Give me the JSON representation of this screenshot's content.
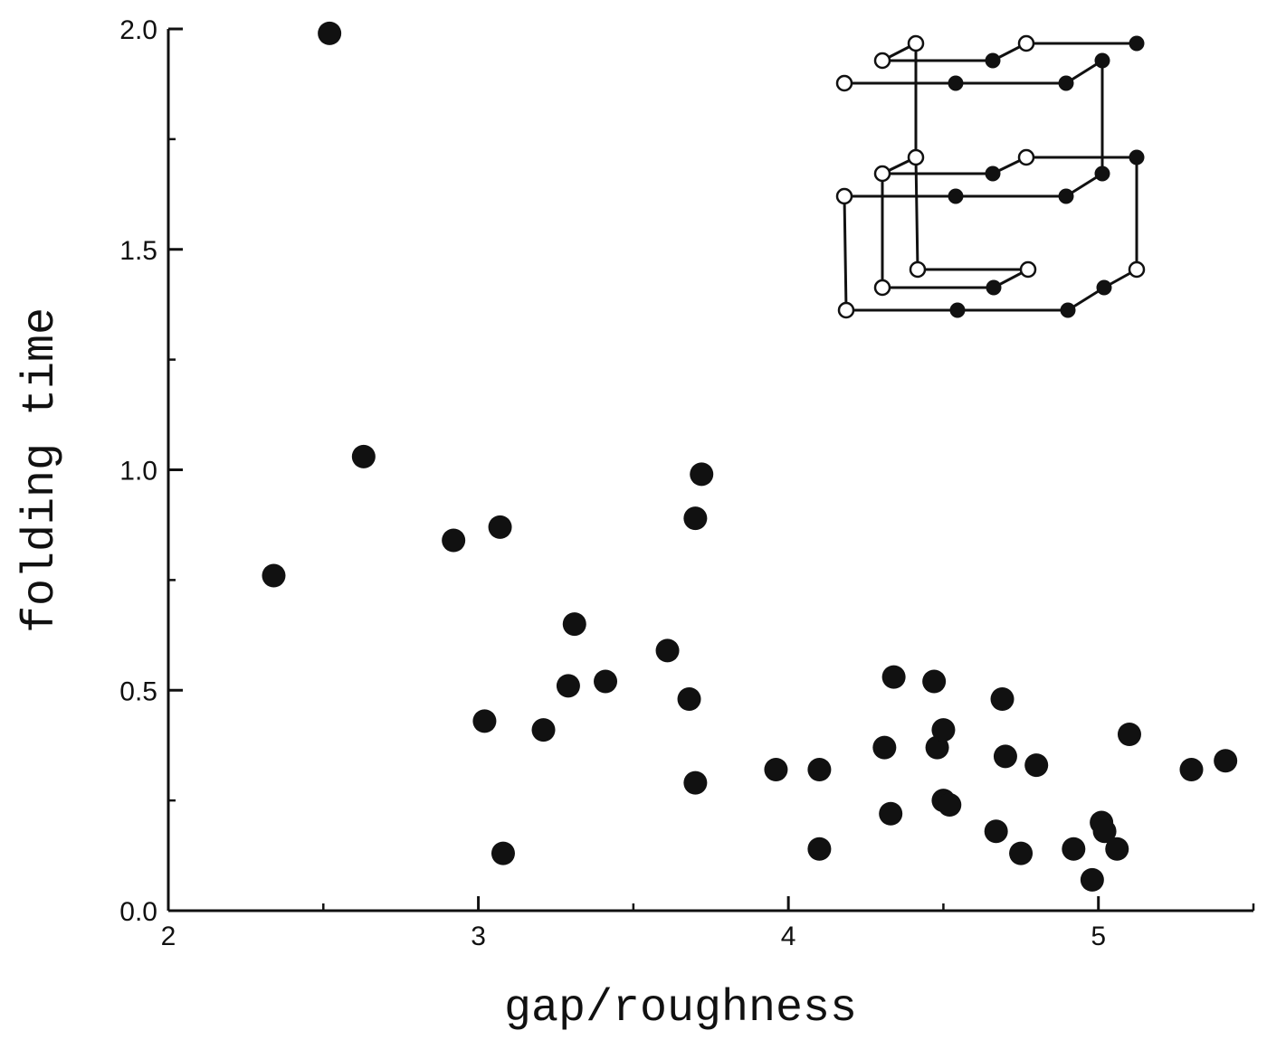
{
  "chart_data": {
    "type": "scatter",
    "title": "",
    "xlabel": "gap/roughness",
    "ylabel": "folding time",
    "xlim": [
      2,
      5.5
    ],
    "ylim": [
      0,
      2.0
    ],
    "xticks": [
      2,
      3,
      4,
      5
    ],
    "xtick_labels": [
      "2",
      "3",
      "4",
      "5"
    ],
    "yticks": [
      0,
      0.5,
      1.0,
      1.5,
      2.0
    ],
    "ytick_labels": [
      "0.0",
      "0.5",
      "1.0",
      "1.5",
      "2.0"
    ],
    "grid": false,
    "legend": "none",
    "marker_color": "#111111",
    "points": [
      {
        "x": 2.34,
        "y": 0.76
      },
      {
        "x": 2.52,
        "y": 1.99
      },
      {
        "x": 2.63,
        "y": 1.03
      },
      {
        "x": 2.92,
        "y": 0.84
      },
      {
        "x": 3.02,
        "y": 0.43
      },
      {
        "x": 3.07,
        "y": 0.87
      },
      {
        "x": 3.08,
        "y": 0.13
      },
      {
        "x": 3.21,
        "y": 0.41
      },
      {
        "x": 3.29,
        "y": 0.51
      },
      {
        "x": 3.31,
        "y": 0.65
      },
      {
        "x": 3.41,
        "y": 0.52
      },
      {
        "x": 3.61,
        "y": 0.59
      },
      {
        "x": 3.68,
        "y": 0.48
      },
      {
        "x": 3.7,
        "y": 0.89
      },
      {
        "x": 3.7,
        "y": 0.29
      },
      {
        "x": 3.72,
        "y": 0.99
      },
      {
        "x": 3.96,
        "y": 0.32
      },
      {
        "x": 4.1,
        "y": 0.32
      },
      {
        "x": 4.1,
        "y": 0.14
      },
      {
        "x": 4.31,
        "y": 0.37
      },
      {
        "x": 4.33,
        "y": 0.22
      },
      {
        "x": 4.34,
        "y": 0.53
      },
      {
        "x": 4.47,
        "y": 0.52
      },
      {
        "x": 4.48,
        "y": 0.37
      },
      {
        "x": 4.5,
        "y": 0.41
      },
      {
        "x": 4.5,
        "y": 0.25
      },
      {
        "x": 4.52,
        "y": 0.24
      },
      {
        "x": 4.67,
        "y": 0.18
      },
      {
        "x": 4.69,
        "y": 0.48
      },
      {
        "x": 4.7,
        "y": 0.35
      },
      {
        "x": 4.75,
        "y": 0.13
      },
      {
        "x": 4.8,
        "y": 0.33
      },
      {
        "x": 4.92,
        "y": 0.14
      },
      {
        "x": 4.98,
        "y": 0.07
      },
      {
        "x": 5.01,
        "y": 0.2
      },
      {
        "x": 5.02,
        "y": 0.18
      },
      {
        "x": 5.06,
        "y": 0.14
      },
      {
        "x": 5.1,
        "y": 0.4
      },
      {
        "x": 5.3,
        "y": 0.32
      },
      {
        "x": 5.41,
        "y": 0.34
      }
    ]
  }
}
